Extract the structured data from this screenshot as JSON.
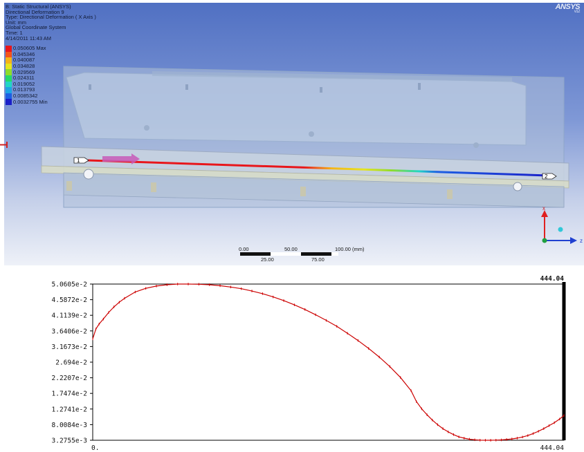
{
  "viewport": {
    "info_lines": [
      "B: Static Structural (ANSYS)",
      "Directional Deformation 9",
      "Type: Directional Deformation ( X Axis )",
      "Unit: mm",
      "Global Coordinate System",
      "Time: 1",
      "4/14/2011 11:43 AM"
    ],
    "legend": [
      {
        "label": "0.050605 Max",
        "color": "#e8161b"
      },
      {
        "label": "0.045346",
        "color": "#f3541d"
      },
      {
        "label": "0.040087",
        "color": "#f5b318"
      },
      {
        "label": "0.034828",
        "color": "#e6e41f"
      },
      {
        "label": "0.029569",
        "color": "#8fdc2a"
      },
      {
        "label": "0.024311",
        "color": "#25d96a"
      },
      {
        "label": "0.019052",
        "color": "#20d6c6"
      },
      {
        "label": "0.013793",
        "color": "#1ea4e4"
      },
      {
        "label": "0.0085342",
        "color": "#1d5fe3"
      },
      {
        "label": "0.0032755 Min",
        "color": "#1a1fc9"
      }
    ],
    "brand": {
      "name": "ANSYS",
      "version": "v12"
    },
    "path_markers": {
      "start": "1",
      "end": "2"
    },
    "scale_bar": {
      "top_labels": [
        "0.00",
        "50.00",
        "100.00 (mm)"
      ],
      "bottom_labels": [
        "25.00",
        "75.00"
      ]
    },
    "triad": {
      "vertical_axis": "x",
      "horizontal_axis": "z",
      "colors": {
        "x": "#e02020",
        "z": "#2040d0",
        "y": "#20a040",
        "point": "#30c8d8"
      }
    }
  },
  "chart_data": {
    "type": "line",
    "yticks": [
      "5.0605e-2",
      "4.5872e-2",
      "4.1139e-2",
      "3.6406e-2",
      "3.1673e-2",
      "2.694e-2",
      "2.2207e-2",
      "1.7474e-2",
      "1.2741e-2",
      "8.0084e-3",
      "3.2755e-3"
    ],
    "ylim": [
      0.0032755,
      0.050605
    ],
    "xlim": [
      0,
      444.04
    ],
    "xticks": [
      "0.",
      "444.04"
    ],
    "corner_label": "444.04",
    "line_color": "#cc0000",
    "x": [
      0,
      3,
      6,
      10,
      15,
      20,
      25,
      30,
      40,
      50,
      60,
      70,
      80,
      90,
      100,
      110,
      120,
      130,
      140,
      150,
      160,
      170,
      180,
      190,
      200,
      210,
      220,
      230,
      240,
      250,
      260,
      270,
      280,
      290,
      300,
      305,
      310,
      315,
      320,
      325,
      330,
      335,
      340,
      345,
      350,
      355,
      360,
      365,
      370,
      375,
      380,
      385,
      390,
      395,
      400,
      405,
      410,
      415,
      420,
      425,
      430,
      435,
      440,
      444.04
    ],
    "y": [
      0.034,
      0.037,
      0.0385,
      0.04,
      0.042,
      0.0437,
      0.0451,
      0.0463,
      0.0482,
      0.0493,
      0.05,
      0.0504,
      0.0506,
      0.0506,
      0.05055,
      0.0504,
      0.0501,
      0.0497,
      0.0492,
      0.0485,
      0.0477,
      0.0467,
      0.0456,
      0.0443,
      0.0429,
      0.0413,
      0.0396,
      0.0378,
      0.0357,
      0.0335,
      0.0311,
      0.0285,
      0.0256,
      0.0223,
      0.0183,
      0.015,
      0.0128,
      0.011,
      0.0094,
      0.008,
      0.0068,
      0.0058,
      0.005,
      0.0043,
      0.0039,
      0.0036,
      0.00342,
      0.0033,
      0.00328,
      0.00328,
      0.00331,
      0.00338,
      0.0035,
      0.00368,
      0.00392,
      0.00425,
      0.0047,
      0.0053,
      0.006,
      0.0068,
      0.0077,
      0.0086,
      0.0097,
      0.0108
    ]
  }
}
